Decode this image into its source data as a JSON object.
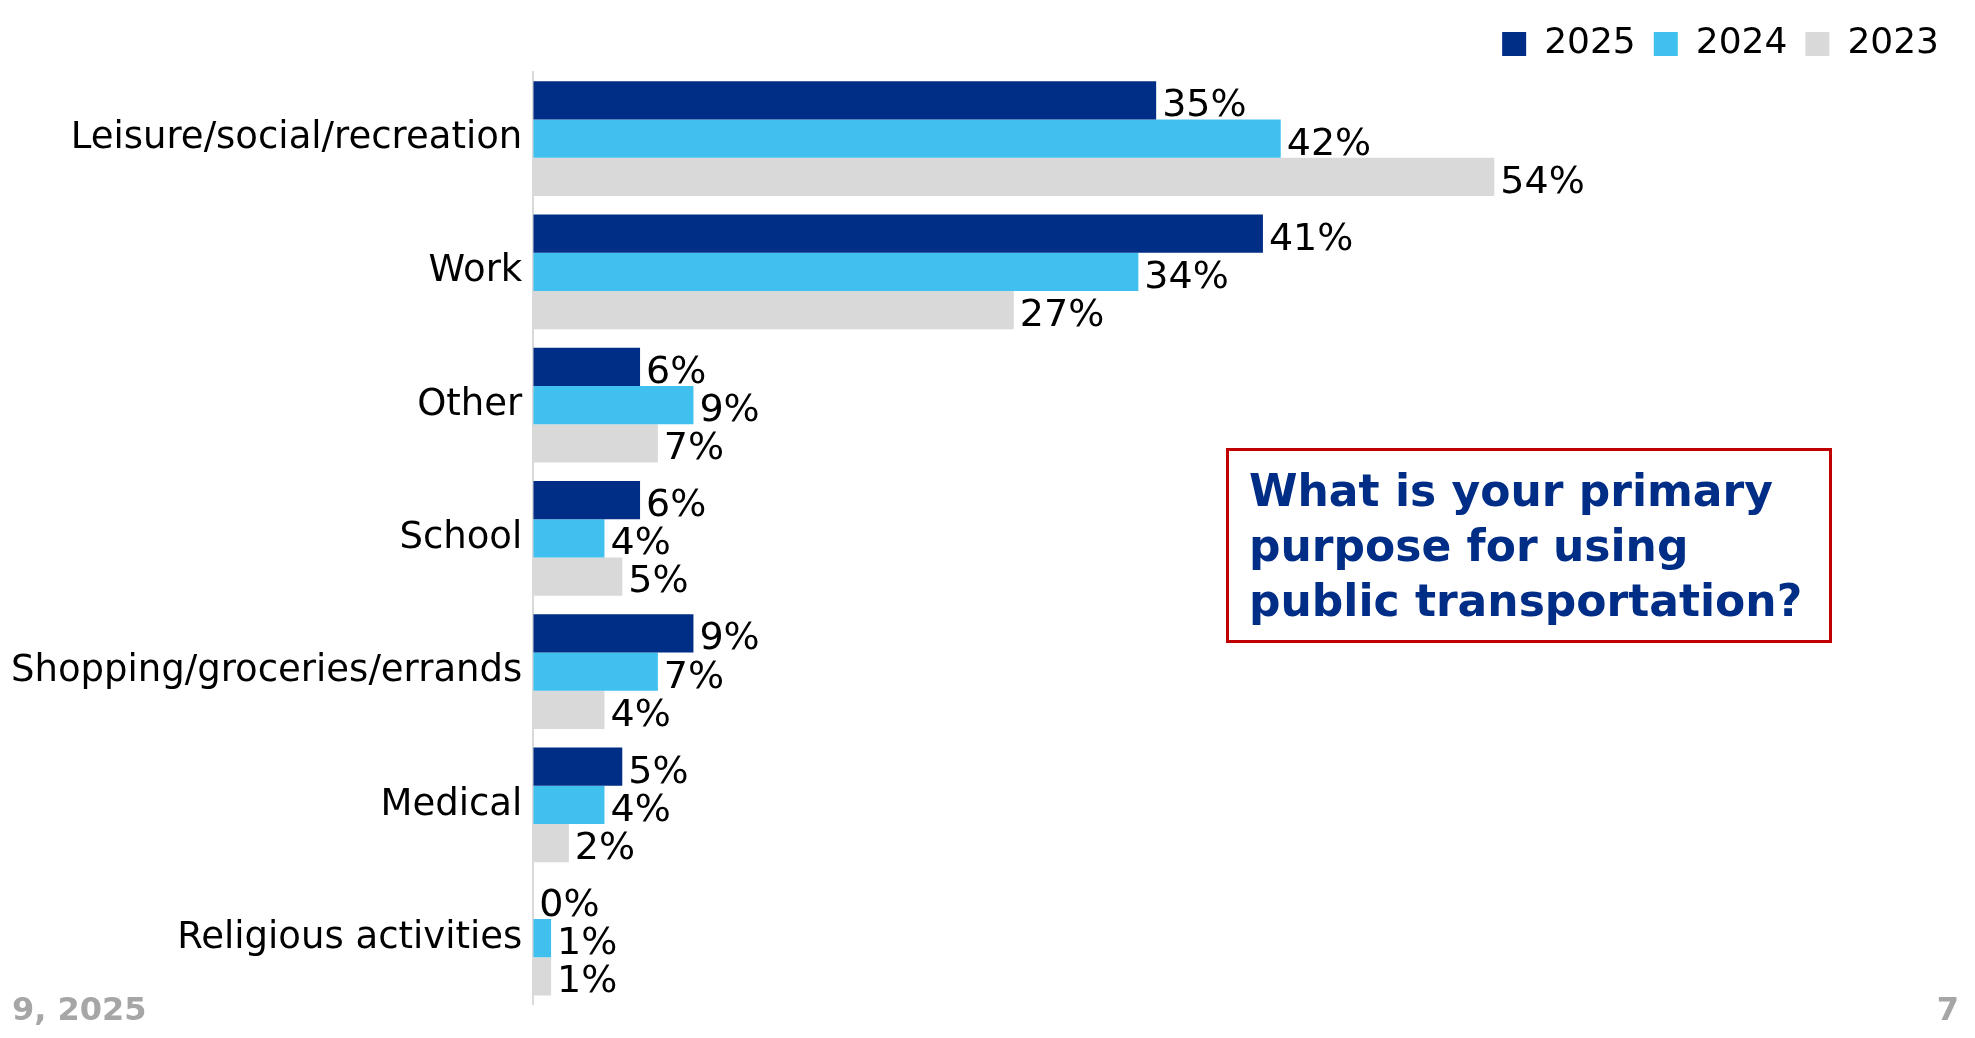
{
  "chart_data": {
    "type": "bar",
    "orientation": "horizontal",
    "categories": [
      "Leisure/social/recreation",
      "Work",
      "Other",
      "School",
      "Shopping/groceries/errands",
      "Medical",
      "Religious activities"
    ],
    "series": [
      {
        "name": "2025",
        "color": "#002d86",
        "values": [
          35,
          41,
          6,
          6,
          9,
          5,
          0
        ],
        "value_labels": [
          "35%",
          "41%",
          "6%",
          "6%",
          "9%",
          "5%",
          "0%"
        ]
      },
      {
        "name": "2024",
        "color": "#40c0ef",
        "values": [
          42,
          34,
          9,
          4,
          7,
          4,
          1
        ],
        "value_labels": [
          "42%",
          "34%",
          "9%",
          "4%",
          "7%",
          "4%",
          "1%"
        ]
      },
      {
        "name": "2023",
        "color": "#d9d9d9",
        "values": [
          54,
          27,
          7,
          5,
          4,
          2,
          1
        ],
        "value_labels": [
          "54%",
          "27%",
          "7%",
          "5%",
          "4%",
          "2%",
          "1%"
        ]
      }
    ],
    "legend": "top right",
    "grid": false,
    "tick_labels": "y",
    "annotations": [
      "What is your primary purpose for using public transportation?",
      "9, 2025",
      "7"
    ]
  }
}
